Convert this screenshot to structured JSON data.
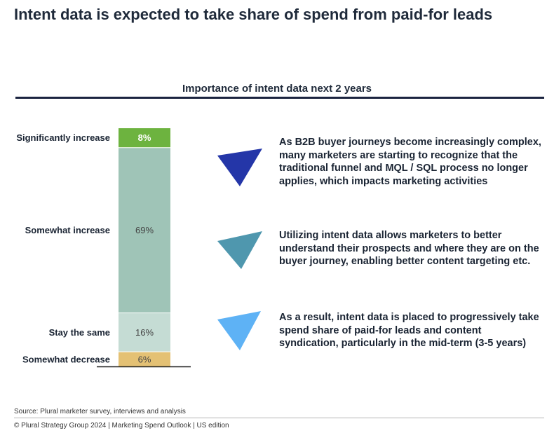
{
  "header": {
    "title": "Intent data is expected to take share of spend from paid-for leads"
  },
  "chart_data": {
    "type": "bar",
    "stacked": true,
    "title": "Importance of intent data next 2 years",
    "categories": [
      "Significantly increase",
      "Somewhat increase",
      "Stay the same",
      "Somewhat decrease"
    ],
    "values": [
      8,
      69,
      16,
      6
    ],
    "value_labels": [
      "8%",
      "69%",
      "16%",
      "6%"
    ],
    "colors": [
      "#6db33f",
      "#9fc4b7",
      "#c5dcd4",
      "#e4c174"
    ],
    "label_colors": [
      "#ffffff",
      "#444444",
      "#444444",
      "#444444"
    ],
    "unit": "%"
  },
  "bullets": [
    {
      "text": "As B2B buyer journeys become increasingly complex, many marketers are starting to recognize that the traditional funnel and MQL / SQL process no longer applies, which impacts marketing activities",
      "icon": "triangle-icon",
      "color": "#2436a8"
    },
    {
      "text": "Utilizing intent data allows marketers to better understand their prospects and where they are on the buyer journey, enabling better content targeting etc.",
      "icon": "triangle-icon",
      "color": "#4f97ae"
    },
    {
      "text": "As a result, intent data is placed to progressively take spend share of paid-for leads and content syndication, particularly in the mid-term (3-5 years)",
      "icon": "triangle-icon",
      "color": "#5eb2f5"
    }
  ],
  "footer": {
    "source": "Source: Plural marketer survey, interviews and analysis",
    "copyright": "© Plural Strategy Group 2024 | Marketing Spend Outlook | US edition"
  }
}
